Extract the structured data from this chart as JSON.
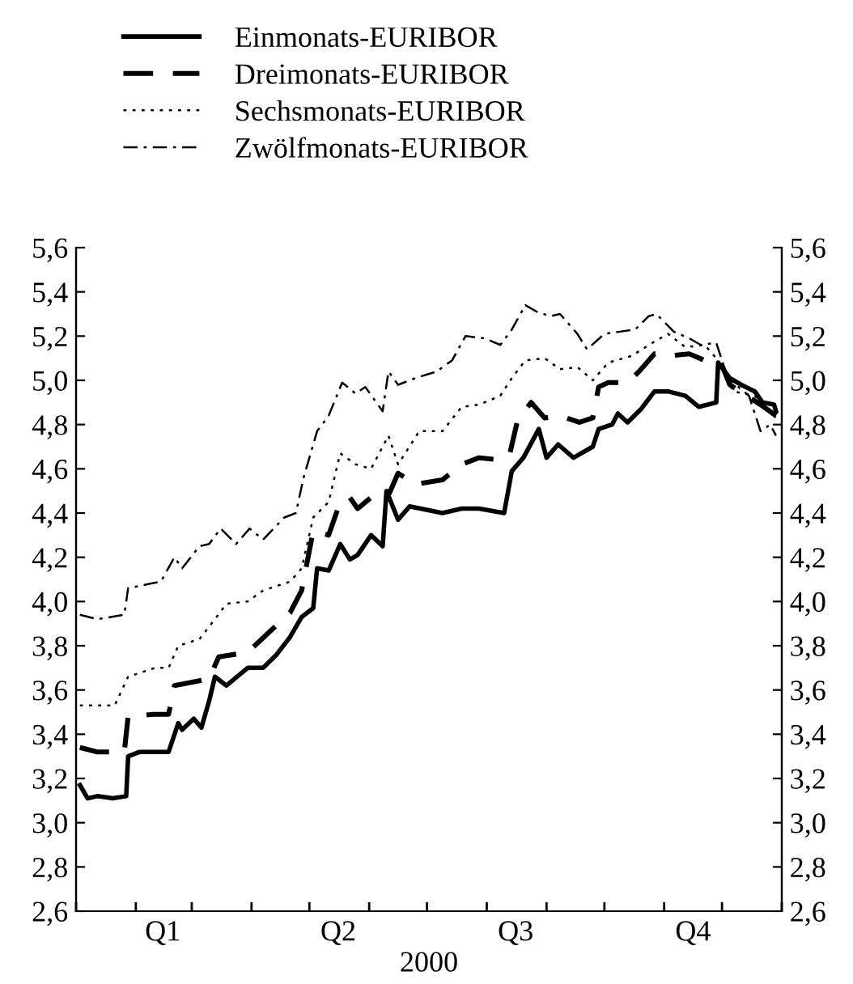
{
  "chart_data": {
    "type": "line",
    "xlabel": "2000",
    "xlim": [
      "2000-01-01",
      "2001-01-01"
    ],
    "xticks": [
      {
        "value": "2000-01-01",
        "label": null
      },
      {
        "value": "2000-02-01",
        "label": null
      },
      {
        "value": "2000-02-15",
        "label": "Q1"
      },
      {
        "value": "2000-03-01",
        "label": null
      },
      {
        "value": "2000-04-01",
        "label": null
      },
      {
        "value": "2000-05-01",
        "label": null
      },
      {
        "value": "2000-05-16",
        "label": "Q2"
      },
      {
        "value": "2000-06-01",
        "label": null
      },
      {
        "value": "2000-07-01",
        "label": null
      },
      {
        "value": "2000-08-01",
        "label": null
      },
      {
        "value": "2000-08-16",
        "label": "Q3"
      },
      {
        "value": "2000-09-01",
        "label": null
      },
      {
        "value": "2000-10-01",
        "label": null
      },
      {
        "value": "2000-11-01",
        "label": null
      },
      {
        "value": "2000-11-16",
        "label": "Q4"
      },
      {
        "value": "2000-12-01",
        "label": null
      },
      {
        "value": "2001-01-01",
        "label": null
      }
    ],
    "ylim": [
      2.6,
      5.6
    ],
    "yticks": [
      {
        "value": 2.6,
        "label": "2,6"
      },
      {
        "value": 2.8,
        "label": "2,8"
      },
      {
        "value": 3.0,
        "label": "3,0"
      },
      {
        "value": 3.2,
        "label": "3,2"
      },
      {
        "value": 3.4,
        "label": "3,4"
      },
      {
        "value": 3.6,
        "label": "3,6"
      },
      {
        "value": 3.8,
        "label": "3,8"
      },
      {
        "value": 4.0,
        "label": "4,0"
      },
      {
        "value": 4.2,
        "label": "4,2"
      },
      {
        "value": 4.4,
        "label": "4,4"
      },
      {
        "value": 4.6,
        "label": "4,6"
      },
      {
        "value": 4.8,
        "label": "4,8"
      },
      {
        "value": 5.0,
        "label": "5,0"
      },
      {
        "value": 5.2,
        "label": "5,2"
      },
      {
        "value": 5.4,
        "label": "5,4"
      },
      {
        "value": 5.6,
        "label": "5,6"
      }
    ],
    "y2lim": [
      2.6,
      5.6
    ],
    "y2ticks": [
      {
        "value": 2.6,
        "label": "2,6"
      },
      {
        "value": 2.8,
        "label": "2,8"
      },
      {
        "value": 3.0,
        "label": "3,0"
      },
      {
        "value": 3.2,
        "label": "3,2"
      },
      {
        "value": 3.4,
        "label": "3,4"
      },
      {
        "value": 3.6,
        "label": "3,6"
      },
      {
        "value": 3.8,
        "label": "3,8"
      },
      {
        "value": 4.0,
        "label": "4,0"
      },
      {
        "value": 4.2,
        "label": "4,2"
      },
      {
        "value": 4.4,
        "label": "4,4"
      },
      {
        "value": 4.6,
        "label": "4,6"
      },
      {
        "value": 4.8,
        "label": "4,8"
      },
      {
        "value": 5.0,
        "label": "5,0"
      },
      {
        "value": 5.2,
        "label": "5,2"
      },
      {
        "value": 5.4,
        "label": "5,4"
      },
      {
        "value": 5.6,
        "label": "5,6"
      }
    ],
    "grid": false,
    "legend": "top left",
    "marker": "none",
    "series": [
      {
        "name": "Einmonats-EURIBOR",
        "color": "#000000",
        "line_style": "solid",
        "x": [
          "2000-01-03",
          "2000-01-07",
          "2000-01-12",
          "2000-01-20",
          "2000-01-27",
          "2000-01-28",
          "2000-02-03",
          "2000-02-18",
          "2000-02-23",
          "2000-02-25",
          "2000-03-02",
          "2000-03-06",
          "2000-03-10",
          "2000-03-13",
          "2000-03-19",
          "2000-03-30",
          "2000-04-07",
          "2000-04-14",
          "2000-04-21",
          "2000-04-27",
          "2000-05-03",
          "2000-05-05",
          "2000-05-11",
          "2000-05-17",
          "2000-05-22",
          "2000-05-26",
          "2000-06-02",
          "2000-06-08",
          "2000-06-10",
          "2000-06-16",
          "2000-06-22",
          "2000-07-09",
          "2000-07-19",
          "2000-07-28",
          "2000-08-10",
          "2000-08-14",
          "2000-08-20",
          "2000-08-28",
          "2000-09-01",
          "2000-09-07",
          "2000-09-15",
          "2000-09-25",
          "2000-09-28",
          "2000-10-05",
          "2000-10-08",
          "2000-10-13",
          "2000-10-20",
          "2000-10-27",
          "2000-11-03",
          "2000-11-12",
          "2000-11-19",
          "2000-11-28",
          "2000-11-29",
          "2000-12-05",
          "2000-12-11",
          "2000-12-18",
          "2000-12-22",
          "2000-12-28",
          "2000-12-29"
        ],
        "values": [
          3.17,
          3.11,
          3.12,
          3.11,
          3.12,
          3.3,
          3.32,
          3.32,
          3.45,
          3.42,
          3.47,
          3.43,
          3.55,
          3.66,
          3.62,
          3.7,
          3.7,
          3.76,
          3.84,
          3.93,
          3.97,
          4.15,
          4.14,
          4.26,
          4.19,
          4.21,
          4.3,
          4.25,
          4.5,
          4.37,
          4.43,
          4.4,
          4.42,
          4.42,
          4.4,
          4.59,
          4.65,
          4.78,
          4.65,
          4.71,
          4.65,
          4.7,
          4.78,
          4.8,
          4.85,
          4.81,
          4.87,
          4.95,
          4.95,
          4.93,
          4.88,
          4.9,
          5.08,
          5.01,
          4.98,
          4.95,
          4.9,
          4.89,
          4.86
        ]
      },
      {
        "name": "Dreimonats-EURIBOR",
        "color": "#000000",
        "line_style": "dashed",
        "x": [
          "2000-01-03",
          "2000-01-12",
          "2000-01-26",
          "2000-01-28",
          "2000-02-10",
          "2000-02-18",
          "2000-02-21",
          "2000-03-10",
          "2000-03-15",
          "2000-03-30",
          "2000-04-10",
          "2000-04-21",
          "2000-04-27",
          "2000-05-03",
          "2000-05-11",
          "2000-05-17",
          "2000-05-22",
          "2000-05-26",
          "2000-06-02",
          "2000-06-11",
          "2000-06-16",
          "2000-06-25",
          "2000-07-09",
          "2000-07-19",
          "2000-07-28",
          "2000-08-08",
          "2000-08-13",
          "2000-08-17",
          "2000-08-24",
          "2000-08-31",
          "2000-09-08",
          "2000-09-18",
          "2000-09-25",
          "2000-09-28",
          "2000-10-03",
          "2000-10-13",
          "2000-10-19",
          "2000-10-27",
          "2000-11-03",
          "2000-11-14",
          "2000-11-22",
          "2000-11-30",
          "2000-12-05",
          "2000-12-21",
          "2000-12-29"
        ],
        "values": [
          3.34,
          3.32,
          3.32,
          3.48,
          3.49,
          3.49,
          3.62,
          3.65,
          3.75,
          3.77,
          3.86,
          3.95,
          4.05,
          4.32,
          4.3,
          4.45,
          4.47,
          4.42,
          4.47,
          4.48,
          4.58,
          4.53,
          4.55,
          4.62,
          4.65,
          4.64,
          4.67,
          4.82,
          4.9,
          4.83,
          4.84,
          4.81,
          4.83,
          4.97,
          4.99,
          4.99,
          5.04,
          5.12,
          5.11,
          5.12,
          5.09,
          5.09,
          4.98,
          4.89,
          4.84
        ]
      },
      {
        "name": "Sechsmonats-EURIBOR",
        "color": "#000000",
        "line_style": "dotted",
        "x": [
          "2000-01-03",
          "2000-01-21",
          "2000-01-28",
          "2000-02-11",
          "2000-02-18",
          "2000-02-23",
          "2000-03-05",
          "2000-03-13",
          "2000-03-19",
          "2000-03-30",
          "2000-04-07",
          "2000-04-21",
          "2000-04-27",
          "2000-05-03",
          "2000-05-11",
          "2000-05-17",
          "2000-05-25",
          "2000-06-02",
          "2000-06-11",
          "2000-06-16",
          "2000-06-27",
          "2000-07-09",
          "2000-07-19",
          "2000-07-28",
          "2000-08-08",
          "2000-08-14",
          "2000-08-21",
          "2000-08-31",
          "2000-09-08",
          "2000-09-17",
          "2000-09-25",
          "2000-10-03",
          "2000-10-15",
          "2000-10-26",
          "2000-11-03",
          "2000-11-12",
          "2000-11-22",
          "2000-11-28",
          "2000-12-07",
          "2000-12-18",
          "2000-12-25",
          "2000-12-29"
        ],
        "values": [
          3.53,
          3.53,
          3.66,
          3.7,
          3.7,
          3.8,
          3.83,
          3.92,
          3.99,
          4.0,
          4.05,
          4.09,
          4.15,
          4.38,
          4.45,
          4.67,
          4.62,
          4.6,
          4.75,
          4.62,
          4.77,
          4.77,
          4.88,
          4.89,
          4.93,
          5.01,
          5.09,
          5.1,
          5.05,
          5.06,
          5.0,
          5.08,
          5.11,
          5.17,
          5.21,
          5.15,
          5.16,
          5.1,
          4.95,
          4.93,
          4.87,
          4.83
        ]
      },
      {
        "name": "Zwölfmonats-EURIBOR",
        "color": "#000000",
        "line_style": "dashdot",
        "x": [
          "2000-01-03",
          "2000-01-12",
          "2000-01-26",
          "2000-01-28",
          "2000-02-08",
          "2000-02-14",
          "2000-02-21",
          "2000-02-25",
          "2000-03-05",
          "2000-03-10",
          "2000-03-16",
          "2000-03-24",
          "2000-03-31",
          "2000-04-07",
          "2000-04-18",
          "2000-04-24",
          "2000-04-28",
          "2000-05-05",
          "2000-05-11",
          "2000-05-18",
          "2000-05-25",
          "2000-05-30",
          "2000-06-08",
          "2000-06-11",
          "2000-06-16",
          "2000-06-25",
          "2000-07-06",
          "2000-07-14",
          "2000-07-21",
          "2000-07-31",
          "2000-08-08",
          "2000-08-14",
          "2000-08-21",
          "2000-08-27",
          "2000-09-03",
          "2000-09-08",
          "2000-09-17",
          "2000-09-22",
          "2000-10-01",
          "2000-10-09",
          "2000-10-17",
          "2000-10-24",
          "2000-10-28",
          "2000-11-06",
          "2000-11-14",
          "2000-11-20",
          "2000-11-28",
          "2000-12-04",
          "2000-12-15",
          "2000-12-21",
          "2000-12-26",
          "2000-12-29"
        ],
        "values": [
          3.94,
          3.92,
          3.94,
          4.06,
          4.08,
          4.09,
          4.2,
          4.15,
          4.25,
          4.26,
          4.33,
          4.26,
          4.33,
          4.28,
          4.38,
          4.4,
          4.56,
          4.77,
          4.84,
          4.99,
          4.94,
          4.97,
          4.86,
          5.04,
          4.98,
          5.01,
          5.04,
          5.09,
          5.2,
          5.19,
          5.16,
          5.23,
          5.34,
          5.31,
          5.29,
          5.3,
          5.21,
          5.14,
          5.21,
          5.22,
          5.23,
          5.29,
          5.3,
          5.22,
          5.19,
          5.16,
          5.17,
          5.01,
          4.93,
          4.77,
          4.8,
          4.75
        ]
      }
    ]
  }
}
